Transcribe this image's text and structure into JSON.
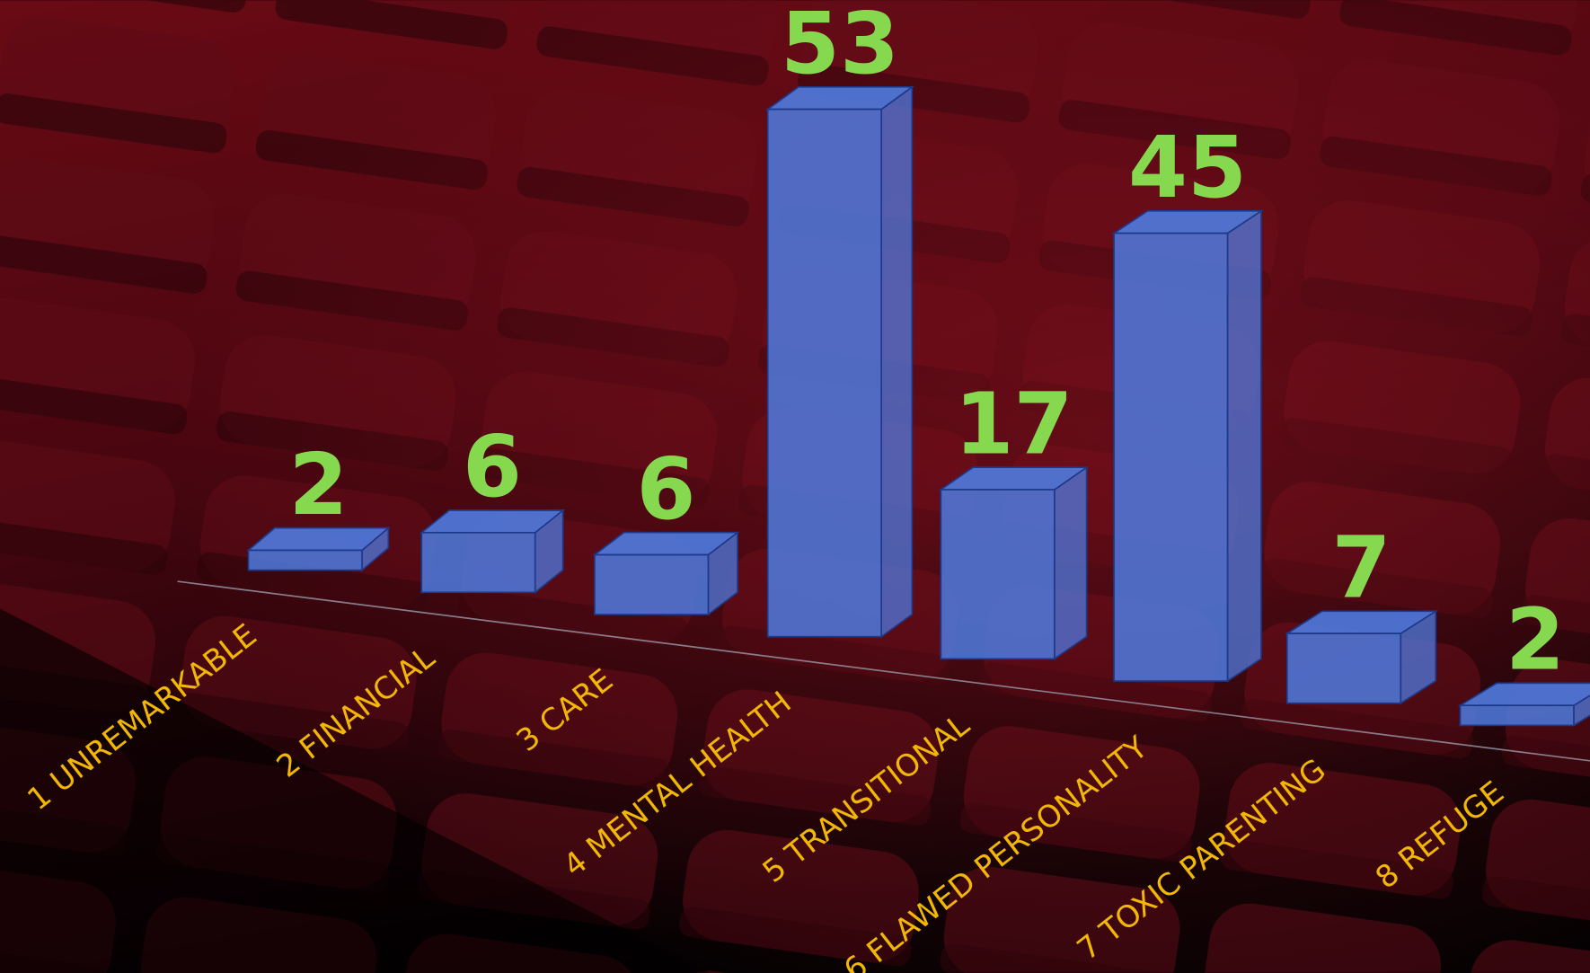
{
  "chart_data": {
    "type": "bar3d",
    "categories": [
      "1 UNREMARKABLE",
      "2 FINANCIAL",
      "3 CARE",
      "4 MENTAL HEALTH",
      "5 TRANSITIONAL",
      "6 FLAWED PERSONALITY",
      "7 TOXIC PARENTING",
      "8 REFUGE"
    ],
    "values": [
      2,
      6,
      6,
      53,
      17,
      45,
      7,
      2
    ],
    "color": "#4f7be0",
    "label_color": "#86d94f",
    "category_color": "#f2b705"
  }
}
